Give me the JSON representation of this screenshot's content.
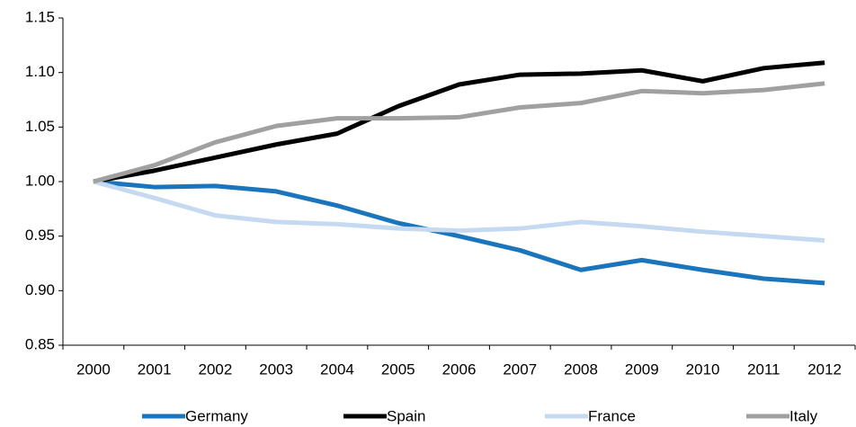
{
  "chart_data": {
    "type": "line",
    "categories": [
      "2000",
      "2001",
      "2002",
      "2003",
      "2004",
      "2005",
      "2006",
      "2007",
      "2008",
      "2009",
      "2010",
      "2011",
      "2012"
    ],
    "series": [
      {
        "name": "Germany",
        "color": "#1b75bc",
        "values": [
          1.0,
          0.995,
          0.996,
          0.991,
          0.978,
          0.962,
          0.95,
          0.937,
          0.919,
          0.928,
          0.919,
          0.911,
          0.907
        ]
      },
      {
        "name": "Spain",
        "color": "#000000",
        "values": [
          1.0,
          1.01,
          1.022,
          1.034,
          1.044,
          1.069,
          1.089,
          1.098,
          1.099,
          1.102,
          1.092,
          1.104,
          1.109
        ]
      },
      {
        "name": "France",
        "color": "#c5d9f1",
        "values": [
          1.0,
          0.985,
          0.969,
          0.963,
          0.961,
          0.957,
          0.955,
          0.957,
          0.963,
          0.959,
          0.954,
          0.95,
          0.946
        ]
      },
      {
        "name": "Italy",
        "color": "#a0a0a0",
        "values": [
          1.0,
          1.015,
          1.036,
          1.051,
          1.058,
          1.058,
          1.059,
          1.068,
          1.072,
          1.083,
          1.081,
          1.084,
          1.09
        ]
      }
    ],
    "ylim": [
      0.85,
      1.15
    ],
    "yticks": [
      0.85,
      {
        "value": 0.9,
        "label": "0.90"
      },
      0.95,
      {
        "value": 1.0,
        "label": "1.00"
      },
      1.05,
      {
        "value": 1.1,
        "label": "1.10"
      },
      1.15
    ],
    "grid": false,
    "legend": "bottom"
  }
}
